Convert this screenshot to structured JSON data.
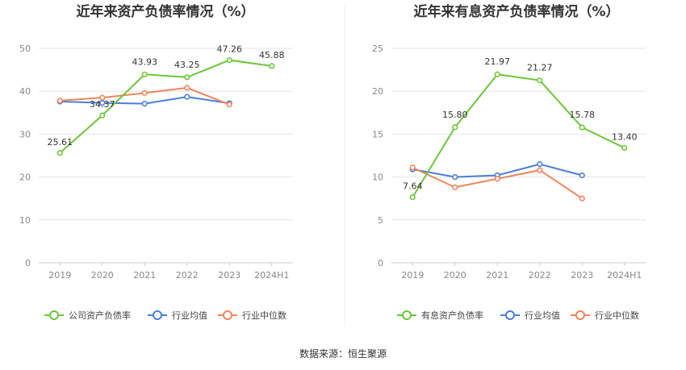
{
  "source_text": "数据来源：恒生聚源",
  "chart_data": [
    {
      "type": "line",
      "title": "近年来资产负债率情况（%）",
      "categories": [
        "2019",
        "2020",
        "2021",
        "2022",
        "2023",
        "2024H1"
      ],
      "ylim": [
        0,
        50
      ],
      "yticks": [
        "0",
        "10",
        "20",
        "30",
        "40",
        "50"
      ],
      "grid": true,
      "legend_position": "bottom",
      "series": [
        {
          "name": "公司资产负债率",
          "color": "#6cc63a",
          "values": [
            25.61,
            34.37,
            43.93,
            43.25,
            47.26,
            45.88
          ],
          "labels": [
            "25.61",
            "34.37",
            "43.93",
            "43.25",
            "47.26",
            "45.88"
          ]
        },
        {
          "name": "行业均值",
          "color": "#4a7fd6",
          "values": [
            37.6,
            37.3,
            37.1,
            38.7,
            37.2,
            null
          ]
        },
        {
          "name": "行业中位数",
          "color": "#f0845c",
          "values": [
            37.8,
            38.5,
            39.6,
            40.8,
            36.9,
            null
          ]
        }
      ]
    },
    {
      "type": "line",
      "title": "近年来有息资产负债率情况（%）",
      "categories": [
        "2019",
        "2020",
        "2021",
        "2022",
        "2023",
        "2024H1"
      ],
      "ylim": [
        0,
        25
      ],
      "yticks": [
        "0",
        "5",
        "10",
        "15",
        "20",
        "25"
      ],
      "grid": true,
      "legend_position": "bottom",
      "series": [
        {
          "name": "有息资产负债率",
          "color": "#6cc63a",
          "values": [
            7.64,
            15.8,
            21.97,
            21.27,
            15.78,
            13.4
          ],
          "labels": [
            "7.64",
            "15.80",
            "21.97",
            "21.27",
            "15.78",
            "13.40"
          ]
        },
        {
          "name": "行业均值",
          "color": "#4a7fd6",
          "values": [
            10.9,
            10.0,
            10.2,
            11.5,
            10.2,
            null
          ]
        },
        {
          "name": "行业中位数",
          "color": "#f0845c",
          "values": [
            11.1,
            8.8,
            9.8,
            10.8,
            7.5,
            null
          ]
        }
      ]
    }
  ]
}
